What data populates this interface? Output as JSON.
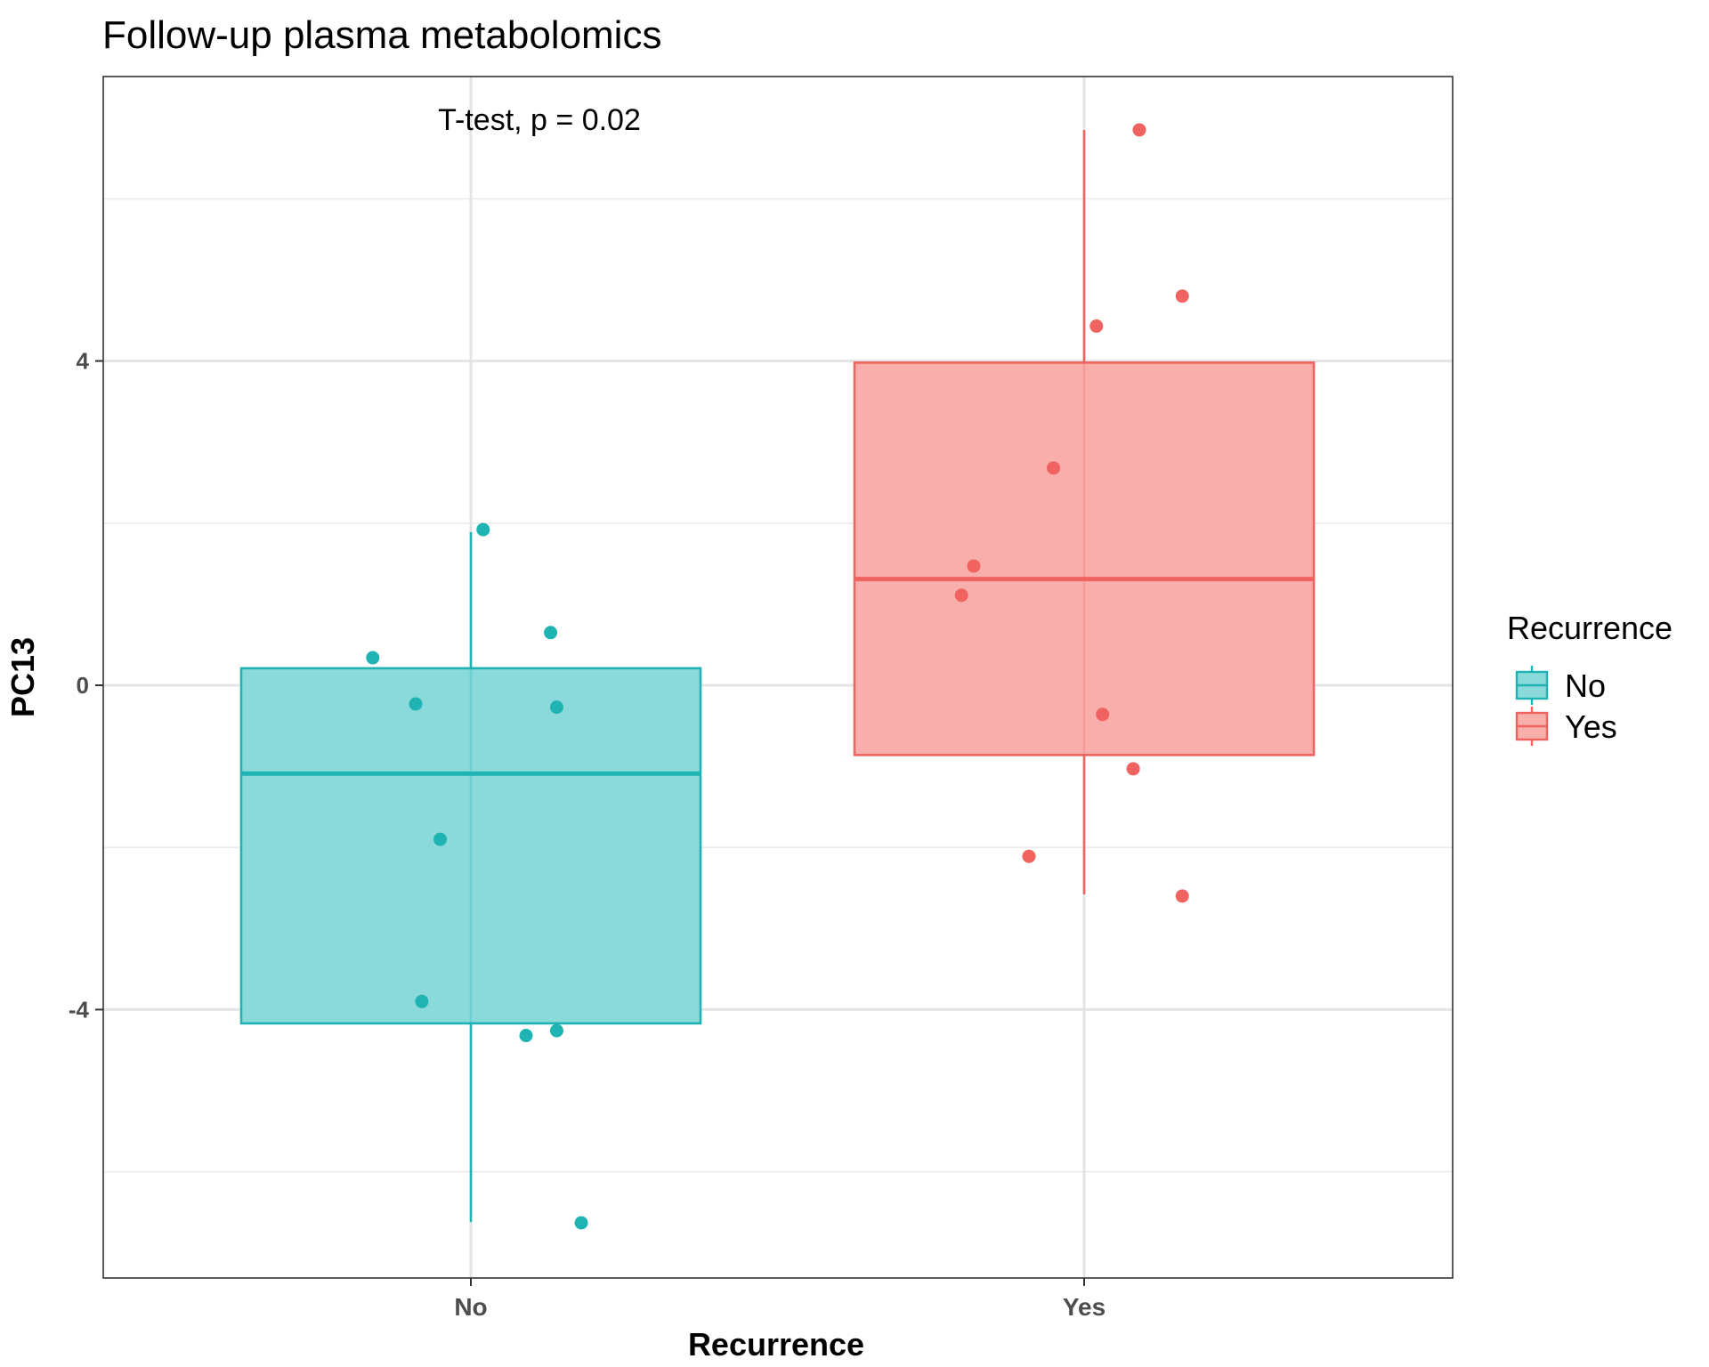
{
  "chart_data": {
    "type": "box",
    "title": "Follow-up plasma metabolomics",
    "xlabel": "Recurrence",
    "ylabel": "PC13",
    "categories": [
      "No",
      "Yes"
    ],
    "yticks": [
      "-4",
      "0",
      "4"
    ],
    "ylim": [
      -7.5,
      7.4
    ],
    "grid": true,
    "annotation": "T-test, p = 0.02",
    "legend": {
      "title": "Recurrence",
      "position": "right",
      "entries": [
        "No",
        "Yes"
      ]
    },
    "series": [
      {
        "name": "No",
        "color": "#1fb3b3",
        "fill": "#8adadb",
        "box": {
          "whisker_low": -6.62,
          "q1": -4.17,
          "median": -1.09,
          "q3": 0.21,
          "whisker_high": 1.89
        },
        "points": [
          {
            "jitter": 0.02,
            "y": 1.92
          },
          {
            "jitter": 0.13,
            "y": 0.65
          },
          {
            "jitter": -0.16,
            "y": 0.34
          },
          {
            "jitter": -0.09,
            "y": -0.23
          },
          {
            "jitter": 0.14,
            "y": -0.27
          },
          {
            "jitter": -0.05,
            "y": -1.9
          },
          {
            "jitter": -0.08,
            "y": -3.9
          },
          {
            "jitter": 0.14,
            "y": -4.26
          },
          {
            "jitter": 0.09,
            "y": -4.32
          },
          {
            "jitter": 0.18,
            "y": -6.63
          }
        ]
      },
      {
        "name": "Yes",
        "color": "#f06360",
        "fill": "#f8aeab",
        "box": {
          "whisker_low": -2.58,
          "q1": -0.86,
          "median": 1.31,
          "q3": 3.98,
          "whisker_high": 6.85
        },
        "points": [
          {
            "jitter": 0.09,
            "y": 6.85
          },
          {
            "jitter": 0.16,
            "y": 4.8
          },
          {
            "jitter": 0.02,
            "y": 4.43
          },
          {
            "jitter": -0.05,
            "y": 2.68
          },
          {
            "jitter": -0.18,
            "y": 1.47
          },
          {
            "jitter": -0.2,
            "y": 1.11
          },
          {
            "jitter": 0.03,
            "y": -0.36
          },
          {
            "jitter": 0.08,
            "y": -1.03
          },
          {
            "jitter": -0.09,
            "y": -2.11
          },
          {
            "jitter": 0.16,
            "y": -2.6
          }
        ]
      }
    ]
  }
}
